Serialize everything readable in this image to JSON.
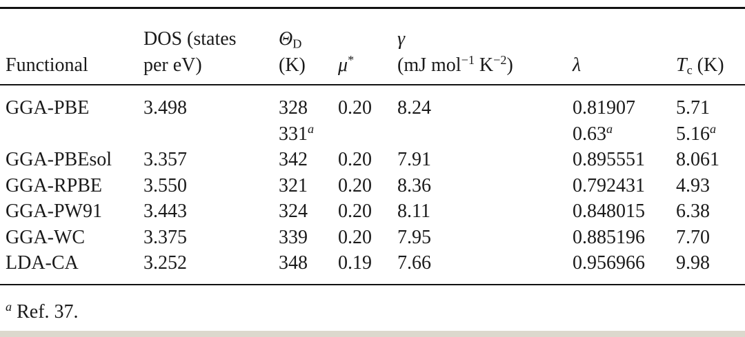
{
  "table": {
    "headers": [
      {
        "text": "Functional"
      },
      {
        "line1": "DOS (states",
        "line2": "per eV)"
      },
      {
        "symbol": "Θ",
        "sub": "D",
        "unit": "(K)"
      },
      {
        "symbol": "μ",
        "sup": "*"
      },
      {
        "symbol": "γ",
        "unit_pre": "(mJ mol",
        "exp1": "−1",
        "unit_mid": " K",
        "exp2": "−2",
        "unit_post": ")"
      },
      {
        "symbol": "λ"
      },
      {
        "symbol": "T",
        "sub": "c",
        "unit": " (K)"
      }
    ],
    "rows": [
      [
        [
          "GGA-PBE"
        ],
        [
          "3.498"
        ],
        [
          "328",
          {
            "text": "331",
            "note": "a"
          }
        ],
        [
          "0.20"
        ],
        [
          "8.24"
        ],
        [
          "0.81907",
          {
            "text": "0.63",
            "note": "a"
          }
        ],
        [
          "5.71",
          {
            "text": "5.16",
            "note": "a"
          }
        ]
      ],
      [
        [
          "GGA-PBEsol"
        ],
        [
          "3.357"
        ],
        [
          "342"
        ],
        [
          "0.20"
        ],
        [
          "7.91"
        ],
        [
          "0.895551"
        ],
        [
          "8.061"
        ]
      ],
      [
        [
          "GGA-RPBE"
        ],
        [
          "3.550"
        ],
        [
          "321"
        ],
        [
          "0.20"
        ],
        [
          "8.36"
        ],
        [
          "0.792431"
        ],
        [
          "4.93"
        ]
      ],
      [
        [
          "GGA-PW91"
        ],
        [
          "3.443"
        ],
        [
          "324"
        ],
        [
          "0.20"
        ],
        [
          "8.11"
        ],
        [
          "0.848015"
        ],
        [
          "6.38"
        ]
      ],
      [
        [
          "GGA-WC"
        ],
        [
          "3.375"
        ],
        [
          "339"
        ],
        [
          "0.20"
        ],
        [
          "7.95"
        ],
        [
          "0.885196"
        ],
        [
          "7.70"
        ]
      ],
      [
        [
          "LDA-CA"
        ],
        [
          "3.252"
        ],
        [
          "348"
        ],
        [
          "0.19"
        ],
        [
          "7.66"
        ],
        [
          "0.956966"
        ],
        [
          "9.98"
        ]
      ]
    ],
    "footnote": {
      "mark": "a",
      "text": "Ref. 37."
    }
  }
}
